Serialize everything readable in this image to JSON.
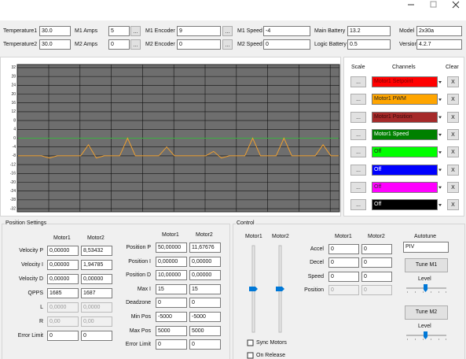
{
  "status": {
    "row1": [
      {
        "label": "Temperature1",
        "value": "30.0"
      },
      {
        "label": "M1 Amps",
        "value": "5"
      },
      {
        "label": "M1 Encoder",
        "value": "9"
      },
      {
        "label": "M1 Speed",
        "value": "-4"
      },
      {
        "label": "Main Battery",
        "value": "13.2"
      },
      {
        "label": "Model",
        "value": "2x30a"
      }
    ],
    "row2": [
      {
        "label": "Temperature2",
        "value": "30.0"
      },
      {
        "label": "M2 Amps",
        "value": "0"
      },
      {
        "label": "M2 Encoder",
        "value": "0"
      },
      {
        "label": "M2 Speed",
        "value": "0"
      },
      {
        "label": "Logic Battery",
        "value": "0.5"
      },
      {
        "label": "Version",
        "value": "4.2.7"
      }
    ],
    "ellipsis": "..."
  },
  "graph": {
    "ylim": [
      -33.4,
      33.4
    ],
    "yticks": [
      32,
      28,
      24,
      20,
      16,
      12,
      8,
      4,
      0,
      -4,
      -8,
      -12,
      -16,
      -20,
      -24,
      -28,
      -32
    ],
    "series": [
      {
        "color": "#3cb043",
        "values": [
          0,
          0,
          0,
          0,
          0,
          0,
          0,
          0,
          0,
          0,
          0,
          0,
          0,
          0,
          0,
          0,
          0,
          0,
          0,
          0,
          0,
          0,
          0,
          0,
          0,
          0,
          0,
          0,
          0,
          0,
          0,
          0,
          0,
          0,
          0,
          0,
          0,
          0,
          0,
          0,
          0,
          0
        ]
      },
      {
        "color": "#f0a030",
        "values": [
          -8,
          -8,
          -8,
          -8,
          -9,
          -8,
          -8,
          -8,
          -8,
          -3,
          -9,
          -8,
          -8,
          -8,
          0,
          -8,
          -8,
          -8,
          -8,
          -4,
          -8,
          -8,
          -8,
          -8,
          -8,
          -6,
          -9,
          -8,
          -8,
          -8,
          0,
          -8,
          -8,
          -8,
          0,
          -8,
          -8,
          -8,
          -8,
          -3,
          -8,
          -8
        ]
      }
    ]
  },
  "channels": {
    "headers": {
      "scale": "Scale",
      "channels": "Channels",
      "clear": "Clear"
    },
    "clear_label": "X",
    "items": [
      {
        "name": "Motor1 Setpoint",
        "color": "#ff0000",
        "text_color": "#7a0000"
      },
      {
        "name": "Motor1 PWM",
        "color": "#ffa500",
        "text_color": "#222222"
      },
      {
        "name": "Motor1 Position",
        "color": "#a52a2a",
        "text_color": "#3a0a0a"
      },
      {
        "name": "Motor1 Speed",
        "color": "#008000",
        "text_color": "#ffffff"
      },
      {
        "name": "Off",
        "color": "#00ff00",
        "text_color": "#222222"
      },
      {
        "name": "Off",
        "color": "#0000ff",
        "text_color": "#ffffff"
      },
      {
        "name": "Off",
        "color": "#ff00ff",
        "text_color": "#333333"
      },
      {
        "name": "Off",
        "color": "#000000",
        "text_color": "#ffffff"
      }
    ]
  },
  "position_settings": {
    "title": "Position Settings",
    "left": {
      "headers": [
        "Motor1",
        "Motor2"
      ],
      "rows": [
        {
          "label": "Velocity P",
          "values": [
            "0,00000",
            "8,53432"
          ]
        },
        {
          "label": "Velocity I",
          "values": [
            "0,00000",
            "1,94785"
          ]
        },
        {
          "label": "Velocity D",
          "values": [
            "0,00000",
            "0,00000"
          ]
        },
        {
          "label": "QPPS",
          "values": [
            "1685",
            "1687"
          ]
        },
        {
          "label": "L",
          "values": [
            "0,0000",
            "0,0000"
          ],
          "disabled": true
        },
        {
          "label": "R",
          "values": [
            "0,00",
            "0,00"
          ],
          "disabled": true
        },
        {
          "label": "Error Limit",
          "values": [
            "0",
            "0"
          ]
        }
      ]
    },
    "right": {
      "headers": [
        "Motor1",
        "Motor2"
      ],
      "rows": [
        {
          "label": "Position P",
          "values": [
            "50,00000",
            "11,67676"
          ]
        },
        {
          "label": "Position I",
          "values": [
            "0,00000",
            "0,00000"
          ]
        },
        {
          "label": "Position D",
          "values": [
            "10,00000",
            "0,00000"
          ]
        },
        {
          "label": "Max I",
          "values": [
            "15",
            "15"
          ]
        },
        {
          "label": "Deadzone",
          "values": [
            "0",
            "0"
          ]
        },
        {
          "label": "Min Pos",
          "values": [
            "-5000",
            "-5000"
          ]
        },
        {
          "label": "Max Pos",
          "values": [
            "5000",
            "5000"
          ]
        },
        {
          "label": "Error Limit",
          "values": [
            "0",
            "0"
          ]
        }
      ]
    }
  },
  "control": {
    "title": "Control",
    "slider_labels": [
      "Motor1",
      "Motor2"
    ],
    "headers": [
      "Motor1",
      "Motor2"
    ],
    "rows": [
      {
        "label": "Accel",
        "values": [
          "0",
          "0"
        ]
      },
      {
        "label": "Decel",
        "values": [
          "0",
          "0"
        ]
      },
      {
        "label": "Speed",
        "values": [
          "0",
          "0"
        ]
      },
      {
        "label": "Position",
        "values": [
          "0",
          "0"
        ],
        "disabled": true
      }
    ],
    "autotune": {
      "label": "Autotune",
      "mode": "PIV",
      "buttons": [
        "Tune M1",
        "Tune M2"
      ],
      "level_label": "Level"
    },
    "checkboxes": [
      "Sync Motors",
      "On Release"
    ]
  }
}
